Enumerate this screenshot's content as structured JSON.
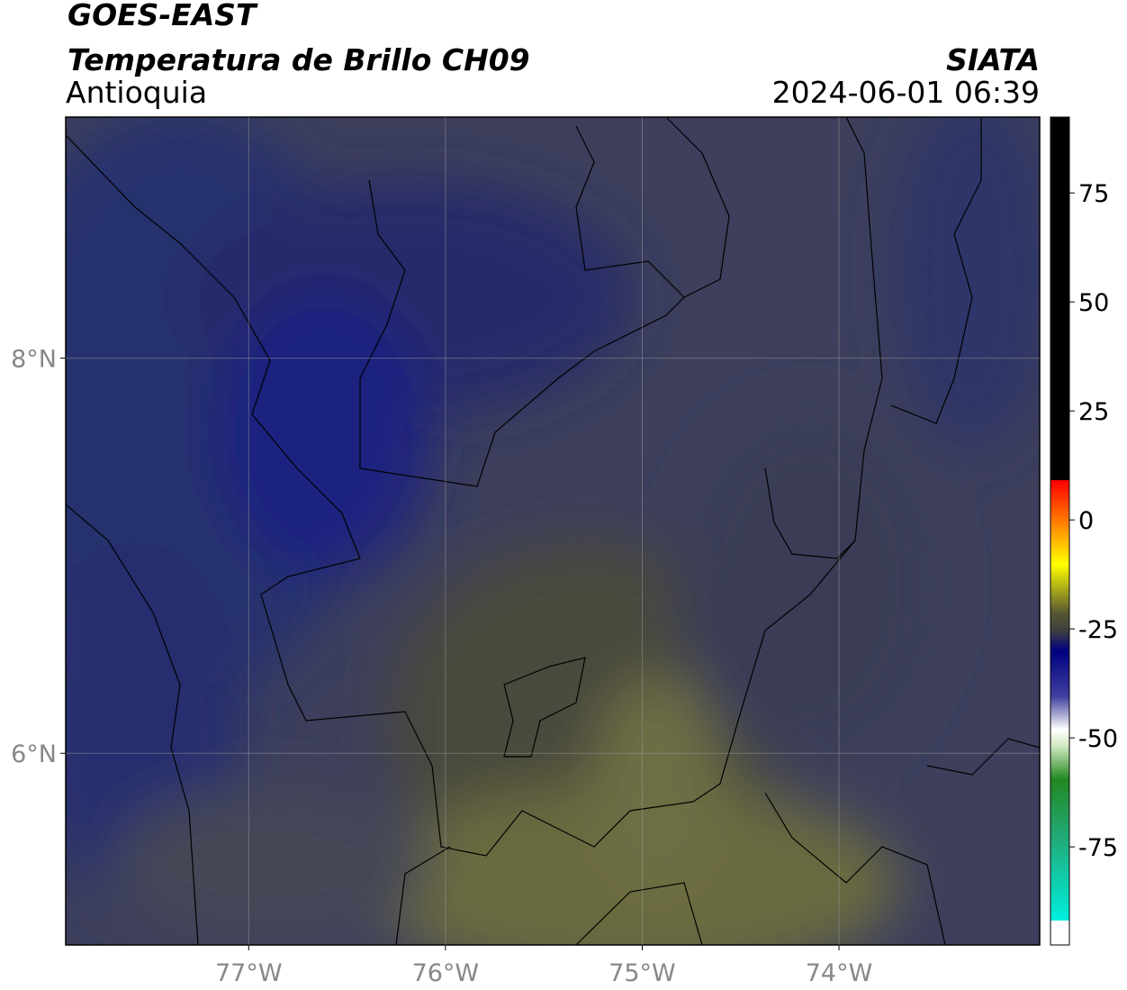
{
  "header": {
    "title": "GOES-EAST",
    "subtitle": "Temperatura de Brillo CH09",
    "region": "Antioquia",
    "source": "SIATA",
    "datetime": "2024-06-01 06:39"
  },
  "map": {
    "lonlim": [
      -77.93,
      -72.98
    ],
    "latlim": [
      5.03,
      9.22
    ],
    "lon_ticks": [
      {
        "value": -77,
        "label": "77°W"
      },
      {
        "value": -76,
        "label": "76°W"
      },
      {
        "value": -75,
        "label": "75°W"
      },
      {
        "value": -74,
        "label": "74°W"
      }
    ],
    "lat_ticks": [
      {
        "value": 8,
        "label": "8°N"
      },
      {
        "value": 6,
        "label": "6°N"
      }
    ],
    "grid": true
  },
  "colorbar": {
    "lim": [
      -97.5,
      92.4
    ],
    "ticks": [
      75,
      50,
      25,
      0,
      -25,
      -50,
      -75
    ]
  }
}
